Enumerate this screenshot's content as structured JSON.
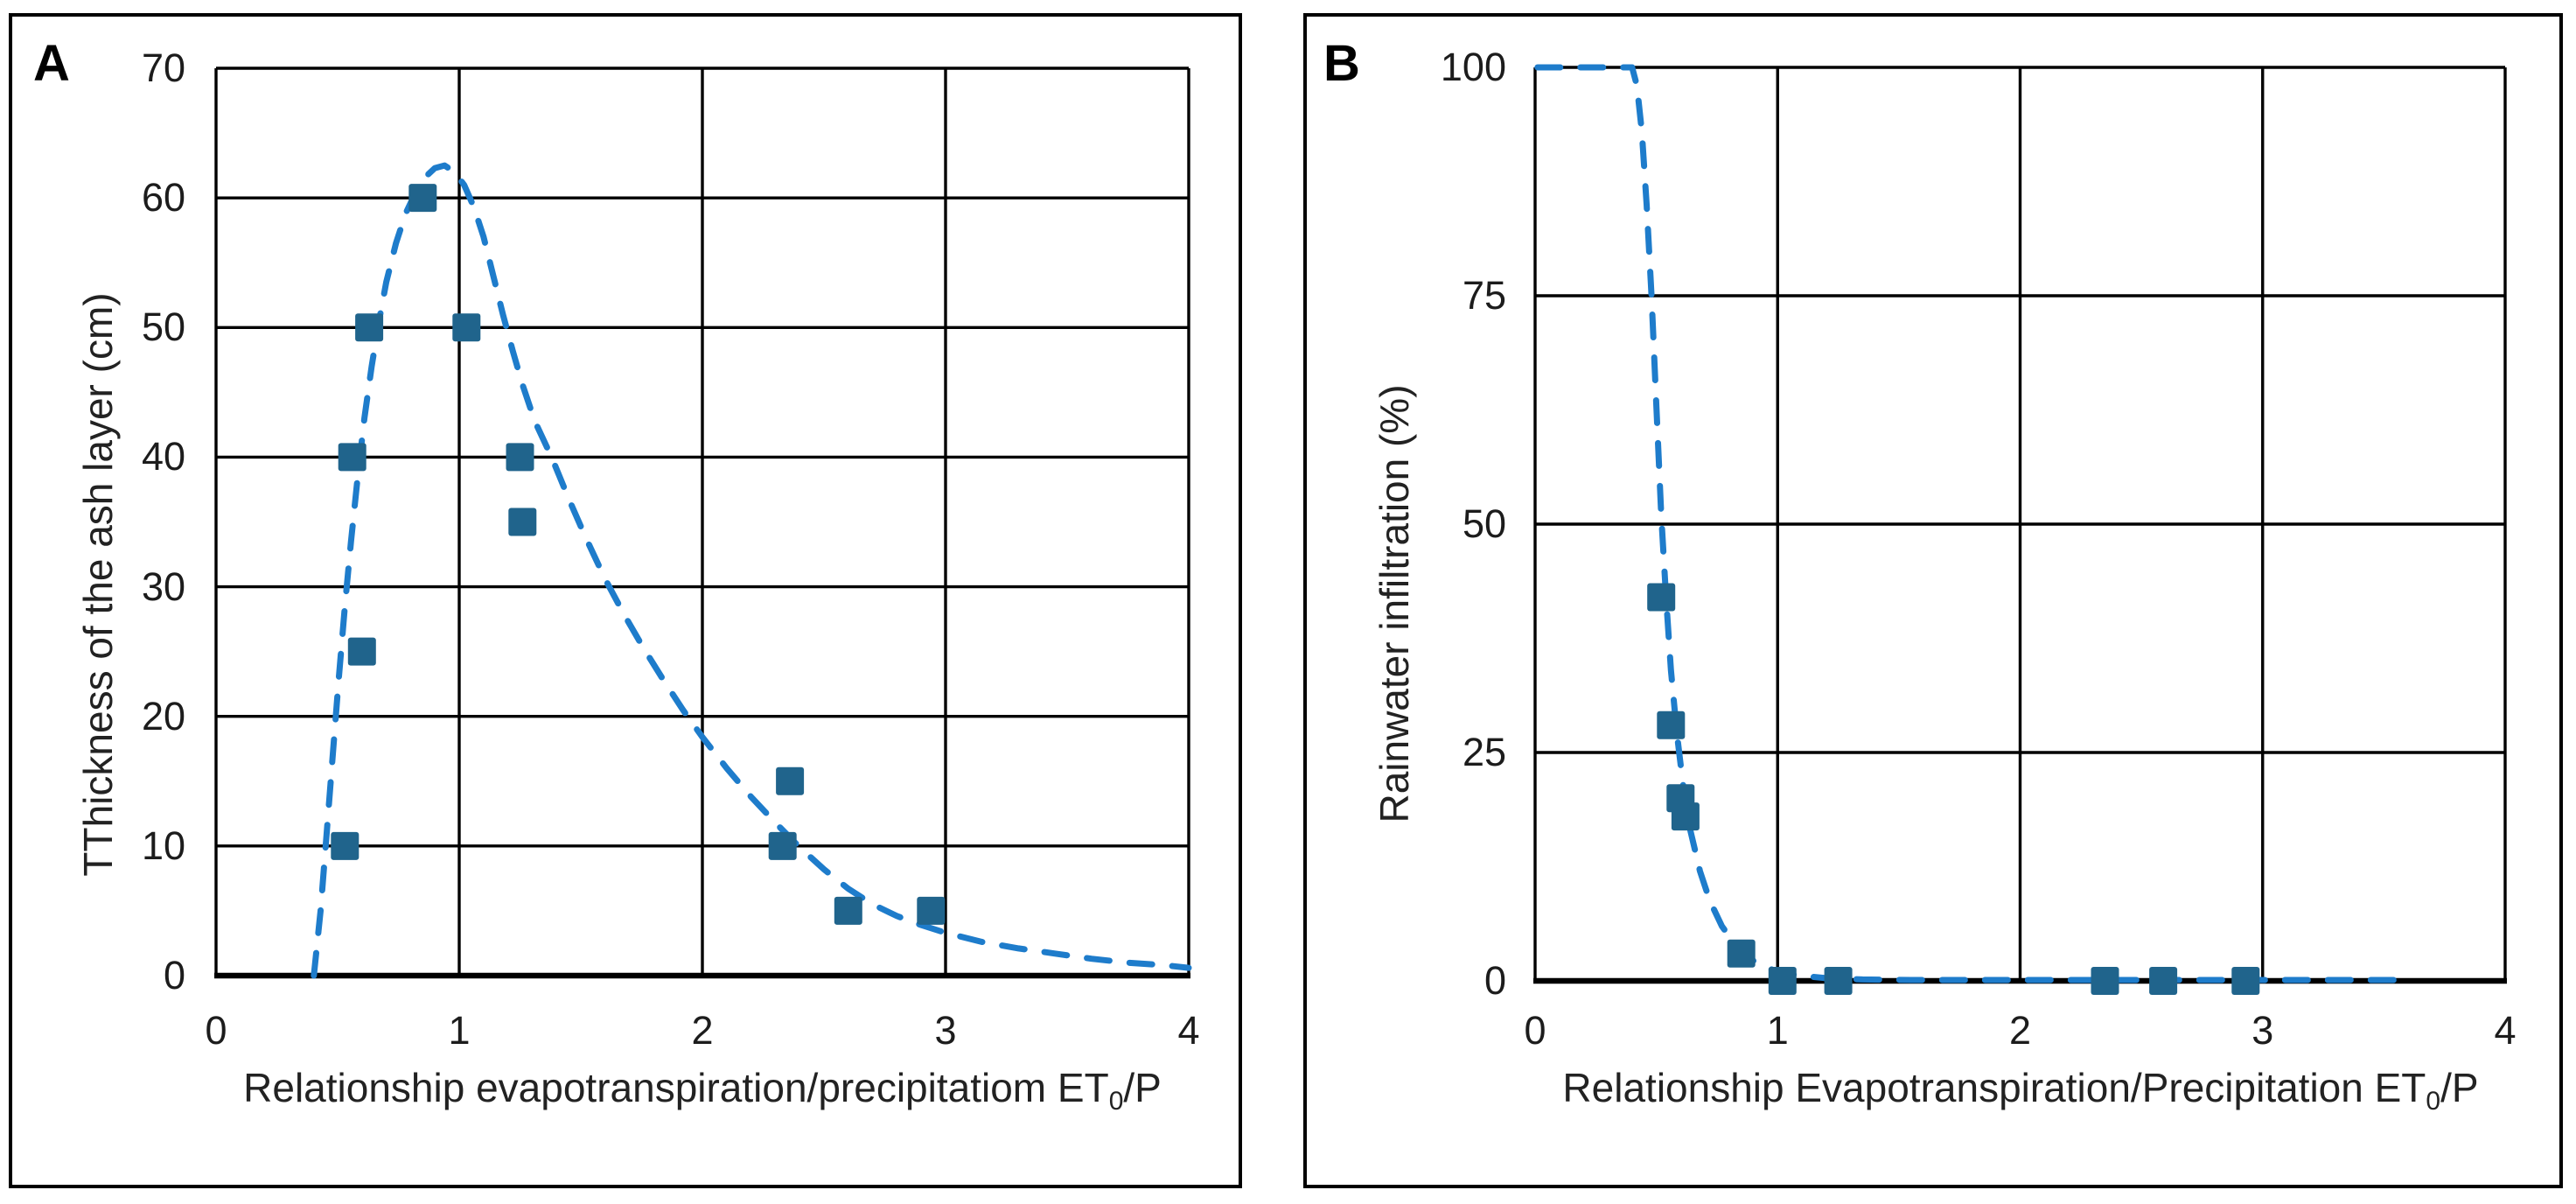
{
  "figure": {
    "background": "#ffffff",
    "grid_color": "#000000",
    "panel_count": 2
  },
  "chart_data": [
    {
      "type": "scatter",
      "panel_label": "A",
      "title": "",
      "ylabel": "TThickness of the ash layer (cm)",
      "xlabel_parts": {
        "pre": "Relationship evapotranspiration/precipitatiom ET",
        "sub": "0",
        "post": "/P"
      },
      "xlim": [
        0,
        4
      ],
      "ylim": [
        0,
        70
      ],
      "x_ticks": [
        0,
        1,
        2,
        3,
        4
      ],
      "y_ticks": [
        0,
        10,
        20,
        30,
        40,
        50,
        60,
        70
      ],
      "grid": true,
      "legend_position": "none",
      "marker": "square",
      "marker_color": "#20648C",
      "trend_color": "#1E7CCB",
      "trend_style": "dashed",
      "points": [
        [
          0.53,
          10
        ],
        [
          0.6,
          25
        ],
        [
          0.56,
          40
        ],
        [
          0.63,
          50
        ],
        [
          0.85,
          60
        ],
        [
          1.03,
          50
        ],
        [
          1.25,
          40
        ],
        [
          1.26,
          35
        ],
        [
          2.36,
          15
        ],
        [
          2.33,
          10
        ],
        [
          2.6,
          5
        ],
        [
          2.94,
          5
        ]
      ],
      "trend": [
        [
          0.402,
          0
        ],
        [
          0.43,
          5
        ],
        [
          0.455,
          11
        ],
        [
          0.48,
          17
        ],
        [
          0.505,
          23
        ],
        [
          0.53,
          28.5
        ],
        [
          0.555,
          33.5
        ],
        [
          0.58,
          38
        ],
        [
          0.61,
          43
        ],
        [
          0.64,
          47
        ],
        [
          0.67,
          50.5
        ],
        [
          0.7,
          53.5
        ],
        [
          0.74,
          56.5
        ],
        [
          0.78,
          58.8
        ],
        [
          0.82,
          60.4
        ],
        [
          0.86,
          61.6
        ],
        [
          0.9,
          62.3
        ],
        [
          0.94,
          62.5
        ],
        [
          0.98,
          62
        ],
        [
          1.02,
          61
        ],
        [
          1.06,
          59.3
        ],
        [
          1.1,
          57
        ],
        [
          1.14,
          54
        ],
        [
          1.18,
          51
        ],
        [
          1.22,
          48.2
        ],
        [
          1.26,
          45.6
        ],
        [
          1.31,
          42.8
        ],
        [
          1.38,
          40
        ],
        [
          1.45,
          36.8
        ],
        [
          1.52,
          33.8
        ],
        [
          1.6,
          30.6
        ],
        [
          1.68,
          27.8
        ],
        [
          1.76,
          25.2
        ],
        [
          1.84,
          22.8
        ],
        [
          1.92,
          20.5
        ],
        [
          2.0,
          18.4
        ],
        [
          2.1,
          16
        ],
        [
          2.2,
          13.8
        ],
        [
          2.3,
          11.8
        ],
        [
          2.4,
          9.9
        ],
        [
          2.5,
          8.2
        ],
        [
          2.6,
          6.7
        ],
        [
          2.7,
          5.5
        ],
        [
          2.8,
          4.6
        ],
        [
          2.9,
          3.9
        ],
        [
          3.0,
          3.3
        ],
        [
          3.15,
          2.6
        ],
        [
          3.3,
          2.1
        ],
        [
          3.45,
          1.7
        ],
        [
          3.6,
          1.3
        ],
        [
          3.75,
          1.0
        ],
        [
          3.9,
          0.8
        ],
        [
          4.0,
          0.6
        ]
      ]
    },
    {
      "type": "scatter",
      "panel_label": "B",
      "title": "",
      "ylabel": "Rainwater infiltration (%)",
      "xlabel_parts": {
        "pre": "Relationship Evapotranspiration/Precipitation ET",
        "sub": "0",
        "post": "/P"
      },
      "xlim": [
        0,
        4
      ],
      "ylim": [
        0,
        100
      ],
      "x_ticks": [
        0,
        1,
        2,
        3,
        4
      ],
      "y_ticks": [
        0,
        25,
        50,
        75,
        100
      ],
      "grid": true,
      "legend_position": "none",
      "marker": "square",
      "marker_color": "#20648C",
      "trend_color": "#1E7CCB",
      "trend_style": "dashed",
      "points": [
        [
          0.52,
          42
        ],
        [
          0.56,
          28
        ],
        [
          0.6,
          20
        ],
        [
          0.62,
          18
        ],
        [
          0.85,
          3
        ],
        [
          1.02,
          0
        ],
        [
          1.25,
          0
        ],
        [
          2.35,
          0
        ],
        [
          2.59,
          0
        ],
        [
          2.93,
          0
        ]
      ],
      "trend": [
        [
          0.01,
          100
        ],
        [
          0.4,
          100
        ],
        [
          0.42,
          98
        ],
        [
          0.44,
          93
        ],
        [
          0.46,
          85
        ],
        [
          0.48,
          75
        ],
        [
          0.5,
          63
        ],
        [
          0.52,
          51
        ],
        [
          0.54,
          42
        ],
        [
          0.56,
          34
        ],
        [
          0.585,
          27
        ],
        [
          0.61,
          21.5
        ],
        [
          0.64,
          16.5
        ],
        [
          0.68,
          12
        ],
        [
          0.72,
          8.8
        ],
        [
          0.77,
          6
        ],
        [
          0.83,
          3.8
        ],
        [
          0.9,
          2.2
        ],
        [
          0.98,
          1.2
        ],
        [
          1.08,
          0.6
        ],
        [
          1.2,
          0.3
        ],
        [
          1.35,
          0.15
        ],
        [
          1.55,
          0.1
        ],
        [
          1.8,
          0.1
        ],
        [
          2.1,
          0.1
        ],
        [
          2.4,
          0.1
        ],
        [
          2.7,
          0.1
        ],
        [
          3.0,
          0.1
        ],
        [
          3.3,
          0.1
        ],
        [
          3.57,
          0.1
        ]
      ]
    }
  ]
}
